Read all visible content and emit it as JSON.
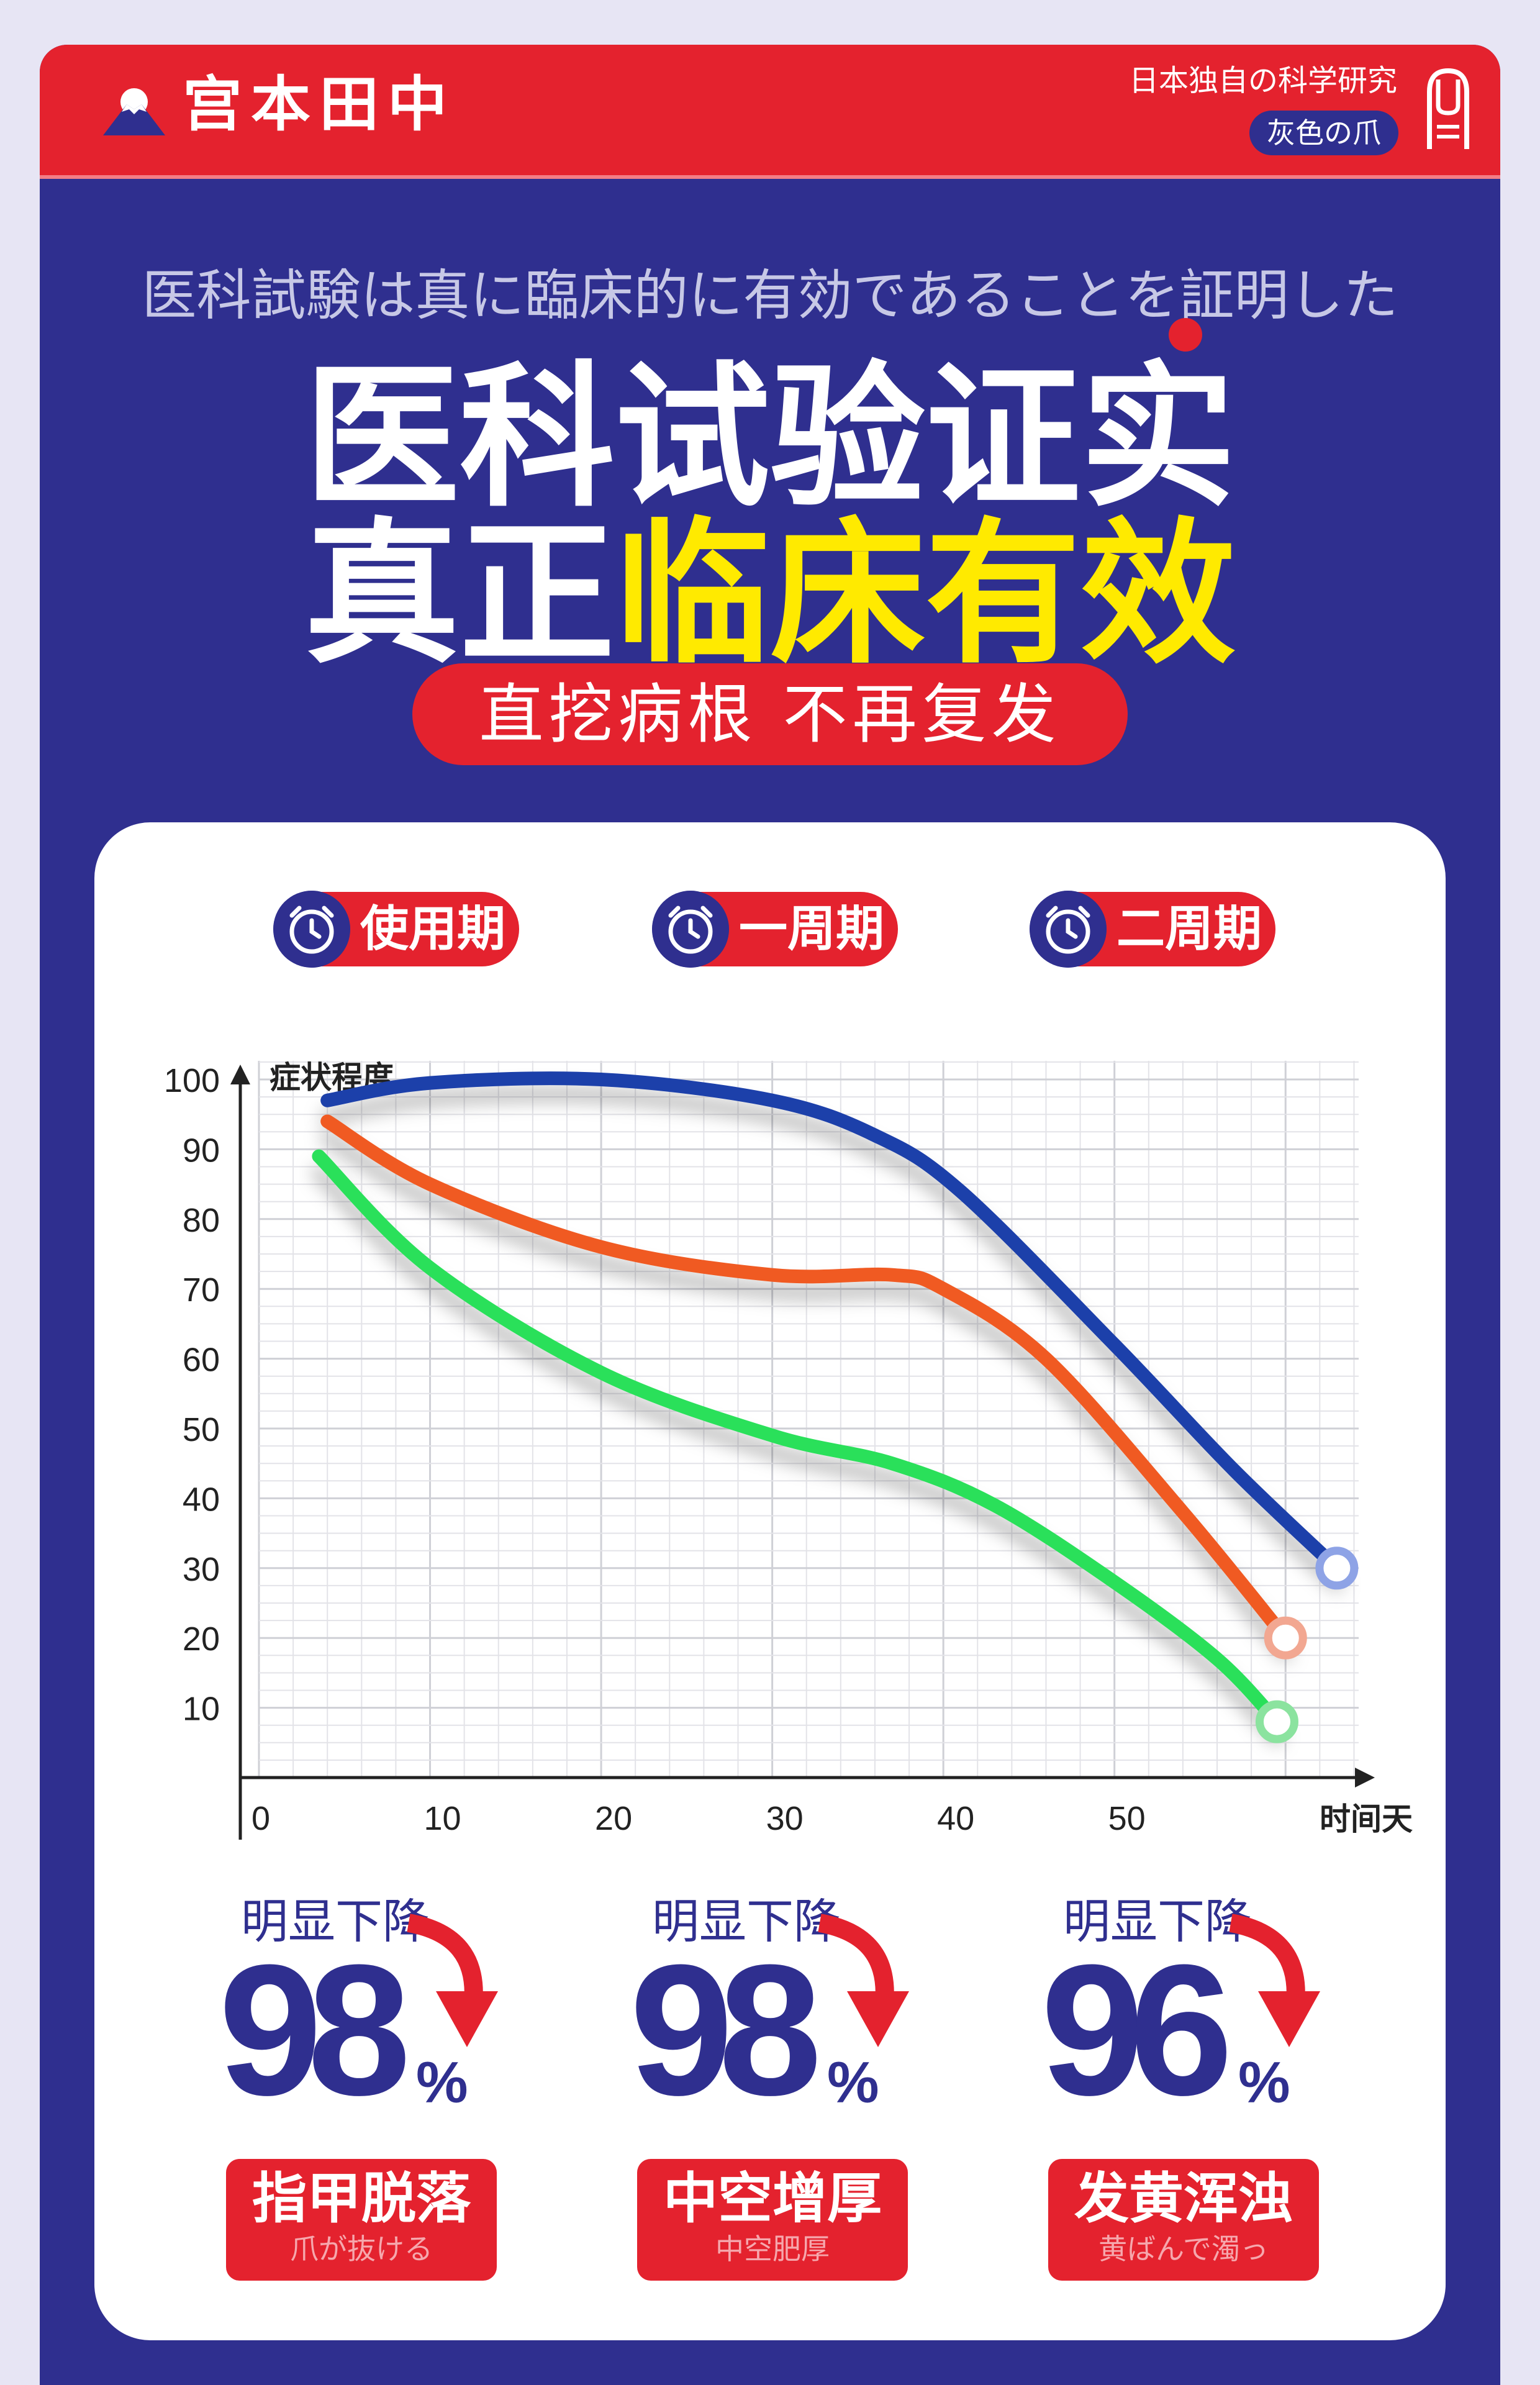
{
  "header": {
    "brand": "宫本田中",
    "tagline": "日本独自の科学研究",
    "badge": "灰色の爪"
  },
  "hero": {
    "subtitle": "医科試験は真に臨床的に有効であることを証明した",
    "title_line1": "医科试验证实",
    "title_line2_white": "真正",
    "title_line2_yellow": "临床有效",
    "slogan": "直挖病根 不再复发"
  },
  "periods": [
    "使用期",
    "一周期",
    "二周期"
  ],
  "chart_data": {
    "type": "line",
    "ylabel": "症状程度",
    "xlabel": "时间天",
    "xlim": [
      0,
      65
    ],
    "ylim": [
      0,
      100
    ],
    "x_ticks": [
      "0",
      "10",
      "20",
      "30",
      "40",
      "50"
    ],
    "y_ticks": [
      "10",
      "20",
      "30",
      "40",
      "50",
      "60",
      "70",
      "80",
      "90",
      "100"
    ],
    "grid": true,
    "series": [
      {
        "color": "#1d3faa",
        "x": [
          4,
          10,
          20,
          30,
          36,
          41,
          50,
          57,
          63
        ],
        "y": [
          97,
          99.5,
          100,
          97,
          92,
          84,
          62,
          44,
          30
        ]
      },
      {
        "color": "#f05a22",
        "x": [
          4,
          10,
          20,
          30,
          37,
          40,
          46,
          54,
          60
        ],
        "y": [
          94,
          85,
          76,
          72,
          72,
          70,
          60,
          38,
          20
        ]
      },
      {
        "color": "#29e05a",
        "x": [
          3.5,
          10,
          20,
          30,
          37,
          43,
          50,
          56,
          59.5
        ],
        "y": [
          89,
          73,
          58,
          49,
          45,
          39,
          28,
          17,
          8
        ]
      }
    ],
    "end_markers": [
      "#8ea3e6",
      "#f2a791",
      "#8be39f"
    ]
  },
  "stats": [
    {
      "label": "明显下降",
      "value": "98",
      "unit": "%",
      "name": "指甲脱落",
      "sub": "爪が抜ける"
    },
    {
      "label": "明显下降",
      "value": "98",
      "unit": "%",
      "name": "中空增厚",
      "sub": "中空肥厚"
    },
    {
      "label": "明显下降",
      "value": "96",
      "unit": "%",
      "name": "发黄浑浊",
      "sub": "黄ばんで濁っ"
    }
  ]
}
